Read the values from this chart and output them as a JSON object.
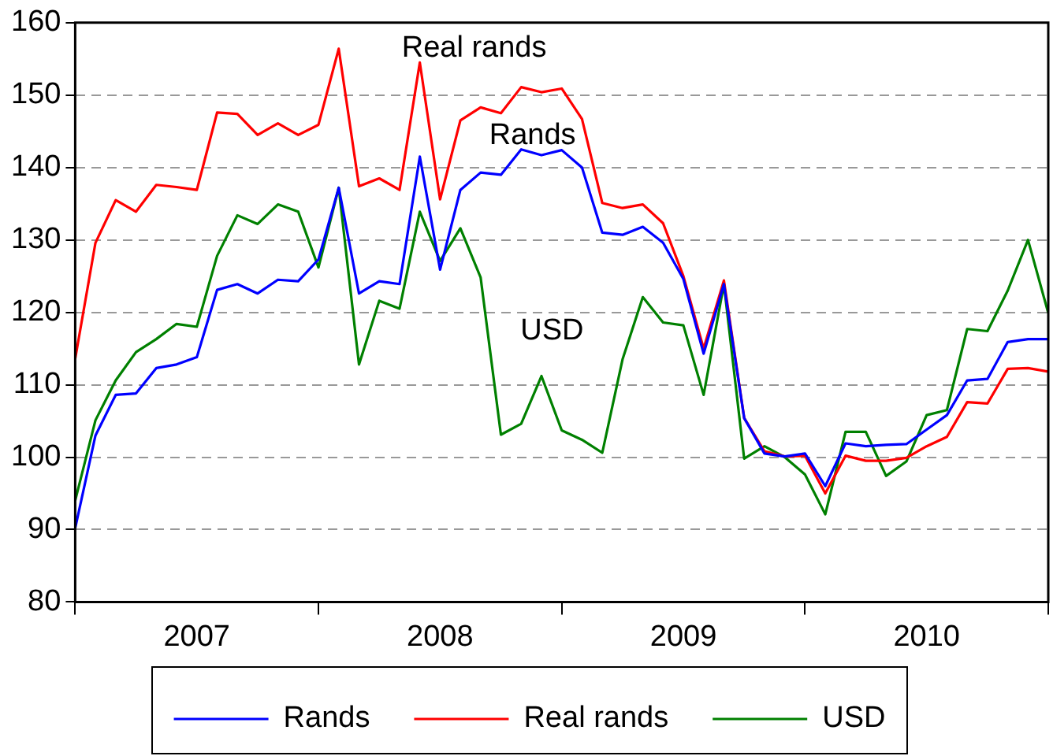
{
  "chart_data": {
    "type": "line",
    "x": [
      "2007-01",
      "2007-02",
      "2007-03",
      "2007-04",
      "2007-05",
      "2007-06",
      "2007-07",
      "2007-08",
      "2007-09",
      "2007-10",
      "2007-11",
      "2007-12",
      "2008-01",
      "2008-02",
      "2008-03",
      "2008-04",
      "2008-05",
      "2008-06",
      "2008-07",
      "2008-08",
      "2008-09",
      "2008-10",
      "2008-11",
      "2008-12",
      "2009-01",
      "2009-02",
      "2009-03",
      "2009-04",
      "2009-05",
      "2009-06",
      "2009-07",
      "2009-08",
      "2009-09",
      "2009-10",
      "2009-11",
      "2009-12",
      "2010-01",
      "2010-02",
      "2010-03",
      "2010-04",
      "2010-05",
      "2010-06",
      "2010-07",
      "2010-08",
      "2010-09",
      "2010-10",
      "2010-11",
      "2010-12",
      "2011-01"
    ],
    "series": [
      {
        "name": "Rands",
        "color": "#0000ff",
        "values": [
          90.2,
          103.0,
          108.6,
          108.8,
          112.3,
          112.8,
          113.8,
          123.1,
          123.9,
          122.6,
          124.5,
          124.3,
          127.3,
          137.2,
          122.6,
          124.3,
          123.9,
          141.5,
          125.9,
          136.9,
          139.3,
          139.0,
          142.5,
          141.7,
          142.4,
          140.0,
          131.0,
          130.7,
          131.8,
          129.6,
          124.6,
          114.3,
          123.9,
          105.4,
          100.5,
          100.1,
          100.5,
          96.0,
          101.9,
          101.5,
          101.7,
          101.8,
          103.8,
          105.8,
          110.6,
          110.8,
          115.9,
          116.3,
          116.3
        ]
      },
      {
        "name": "Real rands",
        "color": "#ff0000",
        "values": [
          113.6,
          129.6,
          135.5,
          133.9,
          137.6,
          137.3,
          136.9,
          147.6,
          147.4,
          144.5,
          146.1,
          144.5,
          145.9,
          156.4,
          137.4,
          138.5,
          136.9,
          154.5,
          135.6,
          146.5,
          148.3,
          147.5,
          151.1,
          150.4,
          150.9,
          146.7,
          135.1,
          134.4,
          134.9,
          132.3,
          125.0,
          115.0,
          124.4,
          105.4,
          100.8,
          100.1,
          100.2,
          95.0,
          100.2,
          99.5,
          99.5,
          99.9,
          101.5,
          102.8,
          107.6,
          107.4,
          112.2,
          112.3,
          111.8
        ]
      },
      {
        "name": "USD",
        "color": "#008000",
        "values": [
          94.0,
          105.1,
          110.6,
          114.5,
          116.3,
          118.4,
          118.0,
          127.8,
          133.4,
          132.2,
          134.9,
          133.9,
          126.2,
          137.2,
          112.8,
          121.6,
          120.5,
          133.9,
          127.1,
          131.6,
          124.8,
          103.1,
          104.6,
          111.2,
          103.7,
          102.4,
          100.6,
          113.5,
          122.1,
          118.6,
          118.2,
          108.6,
          123.9,
          99.8,
          101.5,
          100.0,
          97.6,
          92.1,
          103.5,
          103.5,
          97.4,
          99.4,
          105.8,
          106.5,
          117.7,
          117.4,
          123.0,
          130.0,
          119.9
        ]
      }
    ],
    "xlim": [
      "2007-01",
      "2011-01"
    ],
    "xticks": [
      {
        "value": "2007-01",
        "label": null
      },
      {
        "value": "2007-07",
        "label": "2007"
      },
      {
        "value": "2008-01",
        "label": null
      },
      {
        "value": "2008-07",
        "label": "2008"
      },
      {
        "value": "2009-01",
        "label": null
      },
      {
        "value": "2009-07",
        "label": "2009"
      },
      {
        "value": "2010-01",
        "label": null
      },
      {
        "value": "2010-07",
        "label": "2010"
      },
      {
        "value": "2011-01",
        "label": null
      }
    ],
    "ylim": [
      80,
      160
    ],
    "yticks": [
      80,
      90,
      100,
      110,
      120,
      130,
      140,
      150,
      160
    ],
    "grid": "y",
    "legend": "bottom",
    "marker": "none",
    "line_style": "solid",
    "annotations": [
      "Real rands",
      "Rands",
      "USD"
    ]
  }
}
